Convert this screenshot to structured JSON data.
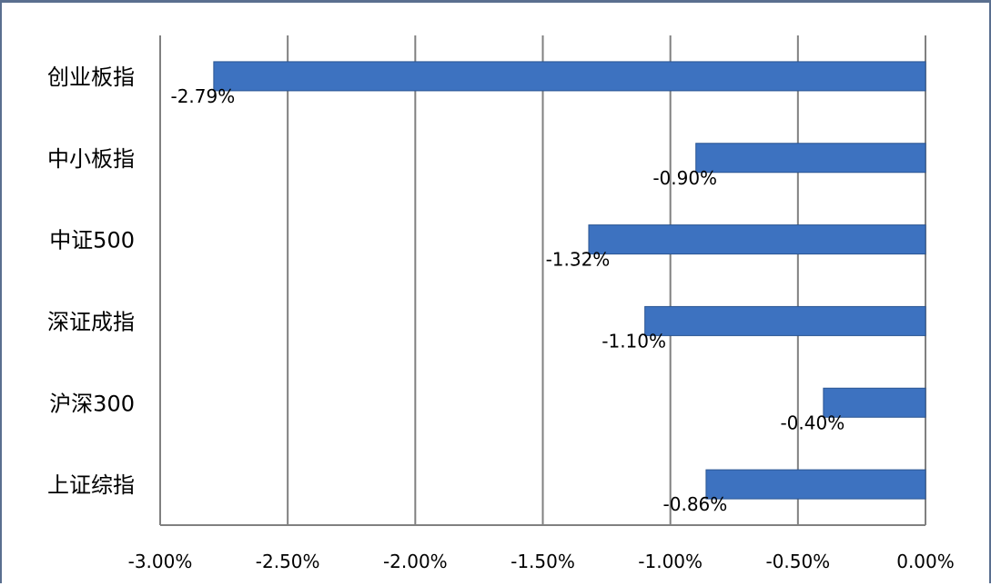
{
  "chart_data": {
    "type": "bar",
    "orientation": "horizontal",
    "categories": [
      "创业板指",
      "中小板指",
      "中证500",
      "深证成指",
      "沪深300",
      "上证综指"
    ],
    "values": [
      -2.79,
      -0.9,
      -1.32,
      -1.1,
      -0.4,
      -0.86
    ],
    "data_labels": [
      "-2.79%",
      "-0.90%",
      "-1.32%",
      "-1.10%",
      "-0.40%",
      "-0.86%"
    ],
    "xlim": [
      -3.0,
      0.0
    ],
    "x_ticks": [
      -3.0,
      -2.5,
      -2.0,
      -1.5,
      -1.0,
      -0.5,
      0.0
    ],
    "x_tick_labels": [
      "-3.00%",
      "-2.50%",
      "-2.00%",
      "-1.50%",
      "-1.00%",
      "-0.50%",
      "0.00%"
    ],
    "title": "",
    "xlabel": "",
    "ylabel": "",
    "grid": "vertical",
    "legend": "none",
    "bar_color": "#3d72c0",
    "bar_edge_color": "#2a5592",
    "grid_color": "#808080",
    "axis_color": "#808080",
    "frame_color": "#5a6f8f"
  }
}
